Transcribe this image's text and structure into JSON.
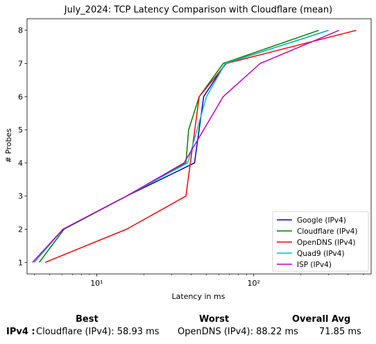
{
  "chart_data": {
    "type": "line",
    "title": "July_2024: TCP Latency Comparison with Cloudflare (mean)",
    "xlabel": "Latency in ms",
    "ylabel": "# Probes",
    "xscale": "log",
    "xlim": [
      3.6,
      560
    ],
    "ylim": [
      0.65,
      8.35
    ],
    "x_major_ticks": [
      10,
      100
    ],
    "x_major_tick_labels": [
      "10¹",
      "10²"
    ],
    "yticks": [
      1,
      2,
      3,
      4,
      5,
      6,
      7,
      8
    ],
    "ytick_labels": [
      "1",
      "2",
      "3",
      "4",
      "5",
      "6",
      "7",
      "8"
    ],
    "grid": false,
    "legend_position": "lower-right",
    "series": [
      {
        "name": "Google (IPv4)",
        "color": "#0000cc",
        "x": [
          4.0,
          6.1,
          15.5,
          42,
          48,
          66,
          300
        ],
        "y": [
          1,
          2,
          3,
          4,
          6,
          7,
          8
        ]
      },
      {
        "name": "Cloudflare (IPv4)",
        "color": "#008000",
        "x": [
          4.3,
          6.2,
          15.5,
          37,
          38.5,
          45,
          64,
          260
        ],
        "y": [
          1,
          2,
          3,
          4,
          5,
          6,
          7,
          8
        ]
      },
      {
        "name": "OpenDNS (IPv4)",
        "color": "#ff0000",
        "x": [
          4.7,
          15.5,
          37,
          45,
          67,
          450
        ],
        "y": [
          1,
          2,
          3,
          6,
          7,
          8
        ]
      },
      {
        "name": "Quad9 (IPv4)",
        "color": "#00c0c0",
        "x": [
          4.0,
          6.1,
          15.5,
          38,
          50,
          66,
          300
        ],
        "y": [
          1,
          2,
          3,
          4,
          6,
          7,
          8
        ]
      },
      {
        "name": "ISP (IPv4)",
        "color": "#c000c0",
        "x": [
          3.9,
          6.1,
          15.5,
          36,
          48,
          64,
          110,
          350
        ],
        "y": [
          1,
          2,
          3,
          4,
          5,
          6,
          7,
          8
        ]
      }
    ]
  },
  "summary": {
    "best_header": "Best",
    "worst_header": "Worst",
    "avg_header": "Overall Avg",
    "row_label": "IPv4 :",
    "best_value": "Cloudflare (IPv4): 58.93 ms",
    "worst_value": "OpenDNS (IPv4): 88.22 ms",
    "avg_value": "71.85 ms"
  }
}
